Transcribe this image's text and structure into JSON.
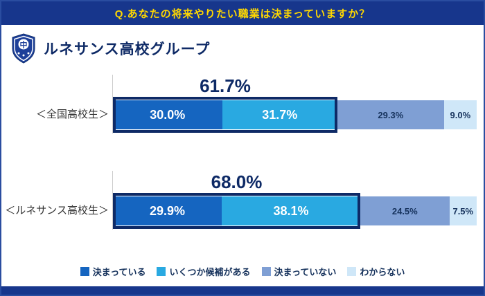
{
  "header": {
    "title": "Q.あなたの将来やりたい職業は決まっていますか？"
  },
  "logo": {
    "text": "ルネサンス高校グループ",
    "shield_char": "中"
  },
  "chart_data": {
    "type": "bar",
    "orientation": "horizontal",
    "stacked": true,
    "unit": "%",
    "xlim": [
      0,
      100
    ],
    "legend_position": "bottom",
    "categories": [
      "＜全国高校生＞",
      "＜ルネサンス高校生＞"
    ],
    "series": [
      {
        "name": "決まっている",
        "color": "#1565c0",
        "values": [
          30.0,
          29.9
        ]
      },
      {
        "name": "いくつか候補がある",
        "color": "#29a9e1",
        "values": [
          31.7,
          38.1
        ]
      },
      {
        "name": "決まっていない",
        "color": "#7f9fd4",
        "values": [
          29.3,
          24.5
        ]
      },
      {
        "name": "わからない",
        "color": "#cfe7f8",
        "values": [
          9.0,
          7.5
        ]
      }
    ],
    "rows": [
      {
        "category": "＜全国高校生＞",
        "total_label": "61.7%",
        "total_value": 61.7,
        "segments": [
          {
            "label": "30.0%",
            "value": 30.0
          },
          {
            "label": "31.7%",
            "value": 31.7
          },
          {
            "label": "29.3%",
            "value": 29.3
          },
          {
            "label": "9.0%",
            "value": 9.0
          }
        ]
      },
      {
        "category": "＜ルネサンス高校生＞",
        "total_label": "68.0%",
        "total_value": 68.0,
        "segments": [
          {
            "label": "29.9%",
            "value": 29.9
          },
          {
            "label": "38.1%",
            "value": 38.1
          },
          {
            "label": "24.5%",
            "value": 24.5
          },
          {
            "label": "7.5%",
            "value": 7.5
          }
        ]
      }
    ],
    "highlight": {
      "outline_color": "#0e2a66",
      "totals": [
        "61.7%",
        "68.0%"
      ]
    }
  },
  "colors": {
    "header_bg": "#17368c",
    "header_text": "#ffd800",
    "accent_navy": "#0e2a66",
    "page_border": "#2a4da0",
    "footer_bg": "#17368c"
  }
}
